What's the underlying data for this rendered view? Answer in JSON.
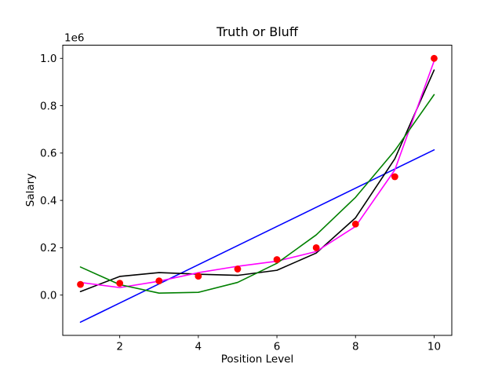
{
  "figure": {
    "title": "Truth or Bluff",
    "xlabel": "Position Level",
    "ylabel": "Salary",
    "offset_label": "1e6",
    "background_color": "#ffffff",
    "spine_color": "#000000"
  },
  "chart_data": {
    "type": "line",
    "title": "Truth or Bluff",
    "xlabel": "Position Level",
    "ylabel": "Salary",
    "y_offset_factor": "1e6",
    "grid": false,
    "legend": null,
    "xlim": [
      0.55,
      10.45
    ],
    "ylim": [
      -170178,
      1055723
    ],
    "x_ticks": {
      "values": [
        2,
        4,
        6,
        8,
        10
      ],
      "labels": [
        "2",
        "4",
        "6",
        "8",
        "10"
      ]
    },
    "y_ticks": {
      "values": [
        0,
        200000,
        400000,
        600000,
        800000,
        1000000
      ],
      "labels": [
        "0.0",
        "0.2",
        "0.4",
        "0.6",
        "0.8",
        "1.0"
      ]
    },
    "x": [
      1,
      2,
      3,
      4,
      5,
      6,
      7,
      8,
      9,
      10
    ],
    "scatter": {
      "name": "red-data-points",
      "color": "#ff0000",
      "values": [
        45000,
        50000,
        60000,
        80000,
        110000,
        150000,
        200000,
        300000,
        500000,
        1000000
      ]
    },
    "series": [
      {
        "name": "blue-straight-line",
        "color": "#0000ff",
        "values": [
          -114455,
          -33576,
          47303,
          128182,
          209061,
          289939,
          370818,
          451697,
          532576,
          613455
        ]
      },
      {
        "name": "black-curve",
        "color": "#000000",
        "values": [
          14902,
          78760,
          94960,
          88224,
          83270,
          104820,
          177595,
          326312,
          575695,
          950462
        ]
      },
      {
        "name": "magenta-curve",
        "color": "#ff00ff",
        "values": [
          53357,
          31759,
          58641,
          94632,
          121724,
          143273,
          184000,
          289987,
          528682,
          988895
        ]
      },
      {
        "name": "green-curve",
        "color": "#008000",
        "values": [
          118727,
          44151,
          8439,
          11591,
          53606,
          134485,
          254227,
          412833,
          610303,
          846636
        ]
      }
    ]
  }
}
